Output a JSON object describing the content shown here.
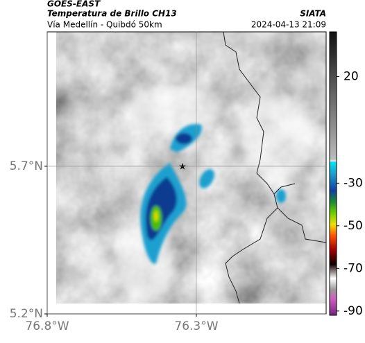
{
  "header": {
    "source": "GOES-EAST",
    "title": "Temperatura de Brillo CH13",
    "route": "Vía Medellín - Quibdó 50km",
    "agency": "SIATA",
    "datetime": "2024-04-13 21:09"
  },
  "map": {
    "xlim": [
      -76.8,
      -75.865
    ],
    "ylim": [
      5.2,
      6.155
    ],
    "xticks": [
      {
        "value": -76.8,
        "label": "76.8°W"
      },
      {
        "value": -76.3,
        "label": "76.3°W"
      }
    ],
    "yticks": [
      {
        "value": 5.2,
        "label": "5.2°N"
      },
      {
        "value": 5.7,
        "label": "5.7°N"
      }
    ],
    "grid": true
  },
  "colorbar": {
    "lim": [
      -92,
      41
    ],
    "ticks": [
      20,
      -30,
      -50,
      -70,
      -90
    ]
  }
}
